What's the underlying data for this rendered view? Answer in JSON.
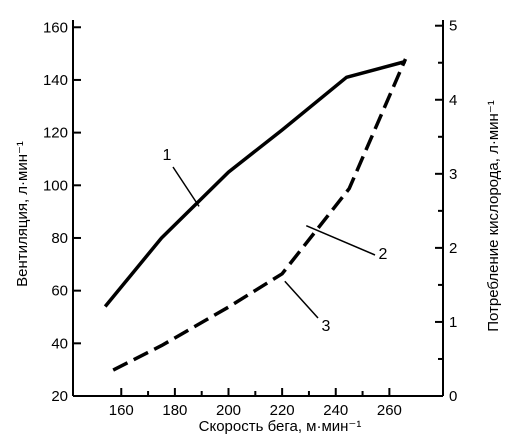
{
  "chart_data": {
    "type": "line",
    "xlabel": "Скорость бега, м·мин⁻¹",
    "ylabel_left": "Вентиляция, л·мин⁻¹",
    "ylabel_right": "Потребление кислорода, л·мин⁻¹",
    "xlim": [
      142,
      280
    ],
    "ylim_left": [
      20,
      162
    ],
    "ylim_right": [
      0,
      5.05
    ],
    "x_ticks": [
      "160",
      "180",
      "200",
      "220",
      "240",
      "260"
    ],
    "y_ticks_left": [
      "20",
      "40",
      "60",
      "80",
      "100",
      "120",
      "140",
      "160"
    ],
    "y_ticks_right": [
      "0",
      "1",
      "2",
      "3",
      "4",
      "5"
    ],
    "grid": false,
    "series": [
      {
        "axis": "left",
        "style": "solid",
        "x": [
          154,
          175,
          200,
          220,
          244,
          266
        ],
        "y": [
          54,
          80,
          105,
          121,
          141,
          147
        ]
      },
      {
        "axis": "right",
        "style": "dashed",
        "x": [
          157,
          175,
          200,
          220,
          245,
          266
        ],
        "y": [
          0.35,
          0.68,
          1.2,
          1.65,
          2.8,
          4.55
        ]
      }
    ],
    "annotations": [
      {
        "label": "1",
        "x": 189,
        "y": 92,
        "axis": "left"
      },
      {
        "label": "2",
        "x": 229,
        "y": 2.3,
        "axis": "right"
      },
      {
        "label": "3",
        "x": 221,
        "y": 1.55,
        "axis": "right"
      }
    ]
  }
}
